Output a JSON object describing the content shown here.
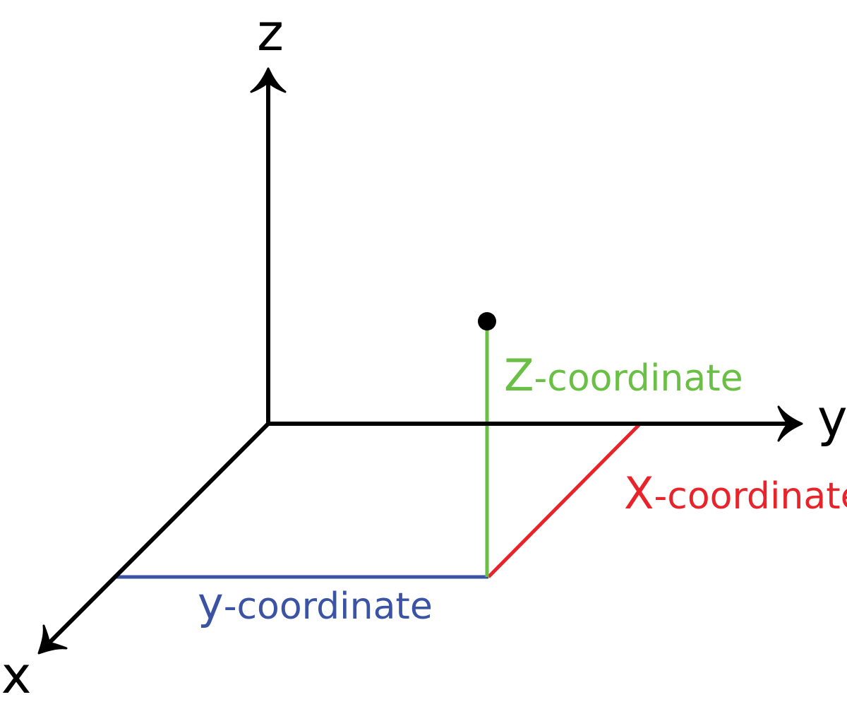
{
  "axes": {
    "z": {
      "label": "z"
    },
    "y": {
      "label": "y"
    },
    "x": {
      "label": "x"
    }
  },
  "labels": {
    "z_coordinate": {
      "letter": "Z",
      "suffix": "-coordinate"
    },
    "x_coordinate": {
      "letter": "X",
      "suffix": "-coordinate"
    },
    "y_coordinate": {
      "letter": "y",
      "suffix": "-coordinate"
    }
  },
  "colors": {
    "axis": "#000000",
    "z_coordinate": "#6abf45",
    "x_coordinate": "#e8232a",
    "y_coordinate": "#3a53a4",
    "point": "#000000"
  }
}
